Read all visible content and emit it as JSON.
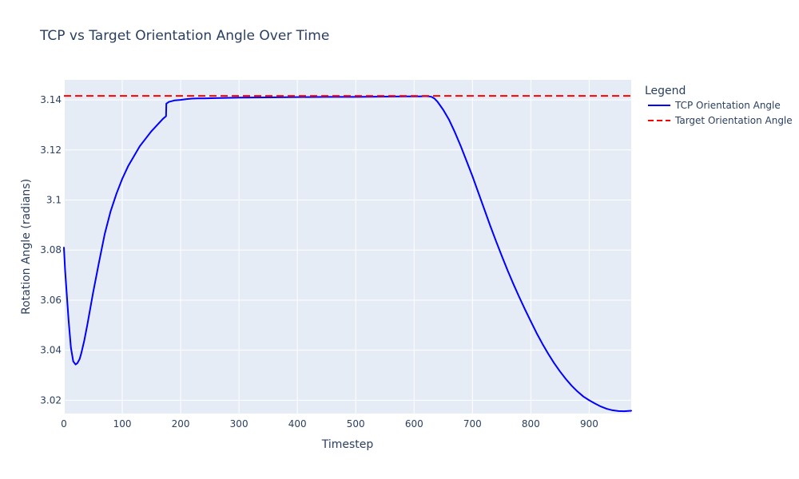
{
  "colors": {
    "plot_background": "#e5ecf6",
    "grid": "#ffffff",
    "text": "#2a3f5f",
    "tcp_line": "#0000ff",
    "target_line": "#ff0000"
  },
  "chart_data": {
    "type": "line",
    "title": "TCP vs Target Orientation Angle Over Time",
    "xlabel": "Timestep",
    "ylabel": "Rotation Angle (radians)",
    "xlim": [
      0,
      972
    ],
    "ylim": [
      3.0147,
      3.148
    ],
    "x_ticks": [
      0,
      100,
      200,
      300,
      400,
      500,
      600,
      700,
      800,
      900
    ],
    "x_tick_labels": [
      "0",
      "100",
      "200",
      "300",
      "400",
      "500",
      "600",
      "700",
      "800",
      "900"
    ],
    "y_ticks": [
      3.02,
      3.04,
      3.06,
      3.08,
      3.1,
      3.12,
      3.14
    ],
    "y_tick_labels": [
      "3.02",
      "3.04",
      "3.06",
      "3.08",
      "3.1",
      "3.12",
      "3.14"
    ],
    "grid": true,
    "legend": {
      "title": "Legend",
      "placement": "right"
    },
    "series": [
      {
        "name": "TCP Orientation Angle",
        "style": "solid",
        "color": "#0000ff",
        "x": [
          0,
          2,
          5,
          8,
          12,
          16,
          20,
          23,
          27,
          30,
          35,
          40,
          50,
          60,
          70,
          80,
          90,
          100,
          110,
          120,
          130,
          140,
          150,
          160,
          170,
          175,
          175.5,
          180,
          190,
          200,
          210,
          220,
          230,
          240,
          260,
          300,
          350,
          400,
          450,
          500,
          550,
          600,
          610,
          620,
          625,
          630,
          635,
          640,
          650,
          660,
          670,
          680,
          690,
          700,
          710,
          720,
          730,
          740,
          750,
          760,
          770,
          780,
          790,
          800,
          810,
          820,
          830,
          840,
          850,
          860,
          870,
          880,
          890,
          900,
          910,
          920,
          930,
          940,
          950,
          960,
          972
        ],
        "y": [
          3.081,
          3.072,
          3.062,
          3.052,
          3.041,
          3.0355,
          3.0343,
          3.0348,
          3.0365,
          3.039,
          3.044,
          3.05,
          3.063,
          3.075,
          3.0865,
          3.0955,
          3.1025,
          3.1085,
          3.1135,
          3.1175,
          3.1215,
          3.1245,
          3.1275,
          3.13,
          3.1325,
          3.1335,
          3.1385,
          3.1392,
          3.1398,
          3.14,
          3.1403,
          3.1405,
          3.1406,
          3.1406,
          3.1407,
          3.1409,
          3.141,
          3.1411,
          3.1412,
          3.1412,
          3.1413,
          3.1414,
          3.1414,
          3.1415,
          3.1414,
          3.1412,
          3.1405,
          3.1393,
          3.136,
          3.132,
          3.127,
          3.1215,
          3.1155,
          3.1095,
          3.103,
          3.0965,
          3.09,
          3.0838,
          3.0778,
          3.072,
          3.0665,
          3.0613,
          3.0563,
          3.0515,
          3.0468,
          3.0425,
          3.0385,
          3.0348,
          3.0315,
          3.0285,
          3.0258,
          3.0235,
          3.0215,
          3.02,
          3.0187,
          3.0175,
          3.0166,
          3.016,
          3.0157,
          3.0156,
          3.0158
        ]
      },
      {
        "name": "Target Orientation Angle",
        "style": "dashed",
        "color": "#ff0000",
        "x": [
          0,
          972
        ],
        "y": [
          3.1416,
          3.1416
        ]
      }
    ]
  }
}
